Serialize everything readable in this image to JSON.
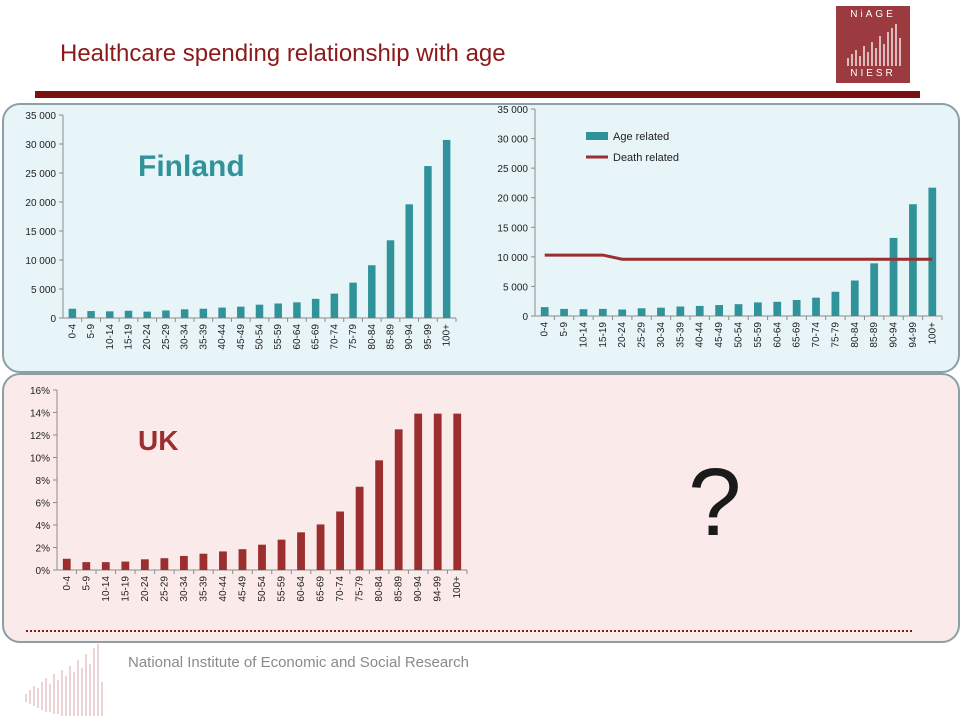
{
  "slide": {
    "title": "Healthcare spending relationship with age",
    "logo_top": "NiAGE",
    "logo_bottom": "NIESR",
    "footer": "National Institute of Economic and Social Research",
    "question_mark": "?"
  },
  "colors": {
    "finland": "#31939a",
    "uk": "#9b2f2f",
    "death_line": "#9b2f2f",
    "title": "#8b1a1a"
  },
  "chart_data": [
    {
      "id": "finland",
      "type": "bar",
      "annotation": "Finland",
      "categories": [
        "0-4",
        "5-9",
        "10-14",
        "15-19",
        "20-24",
        "25-29",
        "30-34",
        "35-39",
        "40-44",
        "45-49",
        "50-54",
        "55-59",
        "60-64",
        "65-69",
        "70-74",
        "75-79",
        "80-84",
        "85-89",
        "90-94",
        "95-99",
        "100+"
      ],
      "values": [
        1600,
        1200,
        1150,
        1250,
        1100,
        1300,
        1500,
        1600,
        1800,
        1950,
        2300,
        2500,
        2700,
        3300,
        4200,
        6100,
        9100,
        13400,
        19600,
        26200,
        30700
      ],
      "ylim": [
        0,
        35000
      ],
      "yticks": [
        "0",
        "5 000",
        "10 000",
        "15 000",
        "20 000",
        "25 000",
        "30 000",
        "35 000"
      ],
      "grid": false
    },
    {
      "id": "finland_decomp",
      "type": "bar+line",
      "categories": [
        "0-4",
        "5-9",
        "10-14",
        "15-19",
        "20-24",
        "25-29",
        "30-34",
        "35-39",
        "40-44",
        "45-49",
        "50-54",
        "55-59",
        "60-64",
        "65-69",
        "70-74",
        "75-79",
        "80-84",
        "85-89",
        "90-94",
        "94-99",
        "100+"
      ],
      "series": [
        {
          "name": "Age related",
          "type": "bar",
          "values": [
            1500,
            1200,
            1150,
            1200,
            1100,
            1300,
            1400,
            1600,
            1700,
            1850,
            2000,
            2300,
            2400,
            2700,
            3100,
            4100,
            6000,
            8900,
            13200,
            18900,
            21700
          ]
        },
        {
          "name": "Death related",
          "type": "line",
          "values": [
            10300,
            10300,
            10300,
            10300,
            9600,
            9600,
            9600,
            9600,
            9600,
            9600,
            9600,
            9600,
            9600,
            9600,
            9600,
            9600,
            9600,
            9600,
            9600,
            9600,
            9600
          ]
        }
      ],
      "ylim": [
        0,
        35000
      ],
      "yticks": [
        "0",
        "5 000",
        "10 000",
        "15 000",
        "20 000",
        "25 000",
        "30 000",
        "35 000"
      ],
      "legend": "top-left",
      "grid": false
    },
    {
      "id": "uk",
      "type": "bar",
      "annotation": "UK",
      "categories": [
        "0-4",
        "5-9",
        "10-14",
        "15-19",
        "20-24",
        "25-29",
        "30-34",
        "35-39",
        "40-44",
        "45-49",
        "50-54",
        "55-59",
        "60-64",
        "65-69",
        "70-74",
        "75-79",
        "80-84",
        "85-89",
        "90-94",
        "94-99",
        "100+"
      ],
      "values": [
        1.0,
        0.7,
        0.7,
        0.75,
        0.95,
        1.05,
        1.25,
        1.45,
        1.65,
        1.85,
        2.25,
        2.7,
        3.35,
        4.05,
        5.2,
        7.4,
        9.75,
        12.5,
        13.9,
        13.9,
        13.9
      ],
      "ylim": [
        0,
        16
      ],
      "yticks": [
        "0%",
        "2%",
        "4%",
        "6%",
        "8%",
        "10%",
        "12%",
        "14%",
        "16%"
      ],
      "grid": false
    }
  ]
}
